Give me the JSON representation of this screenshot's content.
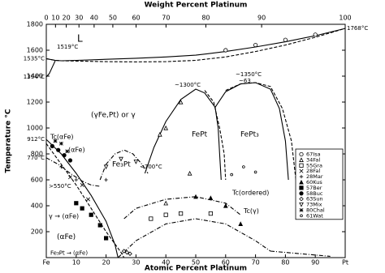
{
  "chart_data": {
    "type": "line",
    "x2label": "Weight Percent Platinum",
    "xlabel": "Atomic Percent Platinum",
    "ylabel": "Temperature °C",
    "color": "#000000",
    "xlim": [
      0,
      100
    ],
    "ylim": [
      0,
      1800
    ],
    "xticks": [
      {
        "value": 0,
        "label": "Fe"
      },
      10,
      20,
      30,
      40,
      50,
      60,
      70,
      80,
      90,
      {
        "value": 100,
        "label": "Pt"
      }
    ],
    "x2ticks": [
      {
        "value": 0,
        "label": "0"
      },
      {
        "value": 3.08,
        "label": "10"
      },
      {
        "value": 6.68,
        "label": "20"
      },
      {
        "value": 10.93,
        "label": "30"
      },
      {
        "value": 16.0,
        "label": "40"
      },
      {
        "value": 22.26,
        "label": "50"
      },
      {
        "value": 30.04,
        "label": "60"
      },
      {
        "value": 40.05,
        "label": "70"
      },
      {
        "value": 53.38,
        "label": "80"
      },
      {
        "value": 72.04,
        "label": "90"
      },
      {
        "value": 100,
        "label": "100"
      }
    ],
    "yticks": [
      200,
      400,
      600,
      800,
      1000,
      1200,
      1400,
      1600,
      1800
    ],
    "legend": "center right",
    "curves": [
      {
        "style": "solid",
        "x": [
          0,
          3,
          5,
          10,
          20,
          30,
          40,
          50,
          60,
          70,
          80,
          90,
          100
        ],
        "values": [
          1535,
          1522,
          1519,
          1522,
          1530,
          1538,
          1548,
          1562,
          1590,
          1625,
          1665,
          1712,
          1768
        ]
      },
      {
        "style": "dashed",
        "x": [
          0,
          3,
          5,
          10,
          20,
          30,
          40,
          50,
          60,
          70,
          80,
          90,
          100
        ],
        "values": [
          1535,
          1522,
          1519,
          1516,
          1512,
          1510,
          1512,
          1522,
          1548,
          1590,
          1640,
          1700,
          1768
        ]
      },
      {
        "style": "solid",
        "x": [
          0,
          1,
          2,
          3
        ],
        "values": [
          1394,
          1420,
          1470,
          1519
        ]
      },
      {
        "style": "solid",
        "x": [
          33,
          36,
          40,
          45,
          50,
          53,
          56.5
        ],
        "values": [
          650,
          850,
          1050,
          1220,
          1300,
          1270,
          1160
        ]
      },
      {
        "style": "dashed",
        "x": [
          53,
          56,
          58,
          59.5,
          60
        ],
        "values": [
          1290,
          1200,
          1000,
          800,
          600
        ]
      },
      {
        "style": "solid",
        "x": [
          56.5,
          57.5,
          58,
          58.5
        ],
        "values": [
          1160,
          1000,
          800,
          600
        ]
      },
      {
        "style": "solid",
        "x": [
          56.5,
          60,
          65,
          70,
          75,
          78,
          80,
          81
        ],
        "values": [
          1160,
          1280,
          1340,
          1350,
          1300,
          1150,
          900,
          600
        ]
      },
      {
        "style": "dashed",
        "x": [
          60,
          65,
          70,
          75,
          79,
          82,
          83.5
        ],
        "values": [
          1290,
          1340,
          1350,
          1320,
          1150,
          900,
          600
        ]
      },
      {
        "style": "dashdot",
        "x": [
          18,
          20,
          23,
          26,
          29,
          32,
          34
        ],
        "values": [
          600,
          720,
          800,
          830,
          800,
          720,
          650
        ]
      },
      {
        "style": "dashdot",
        "x": [
          0,
          4,
          8,
          12,
          15,
          18
        ],
        "values": [
          770,
          720,
          650,
          590,
          560,
          550
        ]
      },
      {
        "style": "solid",
        "x": [
          0,
          5,
          10,
          15,
          20,
          23,
          24
        ],
        "values": [
          912,
          800,
          650,
          480,
          280,
          100,
          0
        ]
      },
      {
        "style": "dashed",
        "x": [
          0,
          5,
          10,
          15,
          20,
          25,
          26
        ],
        "values": [
          880,
          720,
          560,
          380,
          200,
          40,
          0
        ]
      },
      {
        "style": "dashdot",
        "x": [
          26,
          30,
          40,
          50,
          60,
          65
        ],
        "values": [
          300,
          380,
          450,
          470,
          420,
          330
        ]
      },
      {
        "style": "dashdot",
        "x": [
          24,
          30,
          40,
          50,
          60,
          70,
          75
        ],
        "values": [
          0,
          130,
          260,
          300,
          260,
          130,
          50
        ]
      },
      {
        "style": "dashdot",
        "x": [
          75,
          85,
          95
        ],
        "values": [
          50,
          30,
          10
        ]
      }
    ],
    "series": [
      {
        "name": "67Isa",
        "marker": "circle",
        "x": [
          60,
          70,
          80,
          90
        ],
        "values": [
          1600,
          1640,
          1680,
          1720
        ]
      },
      {
        "name": "34Fal",
        "marker": "triangle",
        "x": [
          38,
          40,
          45,
          48,
          40
        ],
        "values": [
          950,
          1000,
          1200,
          650,
          420
        ]
      },
      {
        "name": "55Gra",
        "marker": "square",
        "x": [
          35,
          40,
          45,
          55
        ],
        "values": [
          300,
          330,
          340,
          340
        ]
      },
      {
        "name": "28Fal",
        "marker": "cross",
        "x": [
          8,
          12,
          14
        ],
        "values": [
          620,
          560,
          450
        ]
      },
      {
        "name": "28Mar",
        "marker": "plus",
        "x": [
          5,
          10,
          20
        ],
        "values": [
          700,
          600,
          600
        ]
      },
      {
        "name": "60Kus",
        "marker": "filled-triangle",
        "x": [
          50,
          55,
          60,
          65
        ],
        "values": [
          470,
          460,
          400,
          260
        ]
      },
      {
        "name": "57Ber",
        "marker": "filled-square",
        "x": [
          10,
          12,
          15,
          18,
          20
        ],
        "values": [
          420,
          380,
          330,
          250,
          150
        ]
      },
      {
        "name": "58Buc",
        "marker": "filled-circle",
        "x": [
          2,
          4,
          6,
          8
        ],
        "values": [
          860,
          830,
          790,
          750
        ]
      },
      {
        "name": "63Sun",
        "marker": "diamond",
        "x": [
          26,
          27,
          28
        ],
        "values": [
          50,
          40,
          30
        ]
      },
      {
        "name": "73Mix",
        "marker": "down-triangle",
        "x": [
          20,
          25,
          30
        ],
        "values": [
          700,
          760,
          740
        ]
      },
      {
        "name": "80Chal",
        "marker": "star",
        "x": [
          3,
          5,
          7
        ],
        "values": [
          900,
          880,
          820
        ]
      },
      {
        "name": "61Wat",
        "marker": "small-circle",
        "x": [
          62,
          66,
          70
        ],
        "values": [
          640,
          700,
          660
        ]
      }
    ],
    "annotations": [
      "L",
      "1519°C",
      "1535°C",
      "1394°C",
      "912°C",
      "770°C",
      "1768°C",
      "(γFe,Pt) or γ",
      "~1300°C",
      "~1350°C",
      "~63",
      "FePt",
      "FePt₃",
      "Fe₃Pt",
      "<700°C",
      "Tc(αFe)",
      "(αFe)",
      ">550°C",
      "γ → (αFe)",
      "(αFe)",
      "Fe₃Pt → (αFe)",
      "Tc(ordered)",
      "Tc(γ)"
    ]
  }
}
